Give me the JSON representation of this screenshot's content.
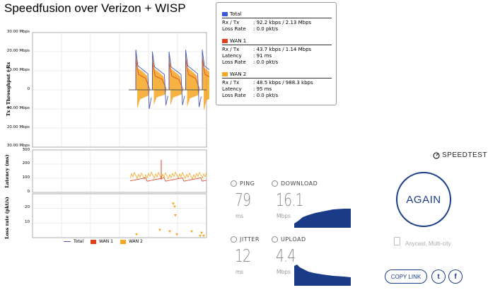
{
  "page": {
    "title": "Speedfusion over Verizon + WISP"
  },
  "chart": {
    "throughput_label": "Tx ) Throughput ( Rx",
    "throughput_ticks": [
      "30.00 Mbps",
      "20.00 Mbps",
      "10.00 Mbps",
      "0",
      "10.00 Mbps",
      "20.00 Mbps",
      "30.00 Mbps"
    ],
    "latency_label": "Latency (ms)",
    "latency_ticks": [
      "300",
      "200",
      "100",
      "0"
    ],
    "loss_label": "Loss rate (pkt/s)",
    "loss_ticks": [
      "20",
      "10"
    ],
    "legend": {
      "total": "Total",
      "wan1": "WAN 1",
      "wan2": "WAN 2"
    },
    "colors": {
      "total": "#4a5ab8",
      "wan1": "#e0401a",
      "wan2": "#f5a623"
    }
  },
  "chart_data": [
    {
      "type": "area",
      "ylabel": "Tx ) Throughput ( Rx",
      "ylim": [
        -30,
        30
      ],
      "series": [
        {
          "name": "Total",
          "peaks_rx_mbps": [
            21,
            20,
            20,
            21,
            21
          ],
          "peaks_tx_mbps": [
            -10,
            -8,
            -8,
            -9,
            -11
          ]
        },
        {
          "name": "WAN 1",
          "peaks_rx_mbps": [
            10,
            9,
            9,
            10,
            10
          ]
        },
        {
          "name": "WAN 2",
          "peaks_rx_mbps": [
            11,
            11,
            11,
            11,
            11
          ]
        }
      ]
    },
    {
      "type": "line",
      "ylabel": "Latency (ms)",
      "ylim": [
        0,
        300
      ],
      "series": [
        {
          "name": "WAN 1",
          "typical": 91
        },
        {
          "name": "WAN 2",
          "typical": 95,
          "max": 230
        }
      ]
    },
    {
      "type": "scatter",
      "ylabel": "Loss rate (pkt/s)",
      "ylim": [
        0,
        30
      ],
      "series": [
        {
          "name": "WAN 2",
          "values": [
            2,
            5,
            4,
            23,
            21,
            15,
            2,
            4,
            1,
            3,
            1
          ]
        }
      ]
    }
  ],
  "stats": {
    "total": {
      "title": "Total",
      "rx_tx_label": "Rx / Tx",
      "rx_tx": ": 92.2 kbps / 2.13 Mbps",
      "loss_label": "Loss Rate",
      "loss": ": 0.0 pkt/s"
    },
    "wan1": {
      "title": "WAN 1",
      "rx_tx_label": "Rx / Tx",
      "rx_tx": ": 43.7 kbps / 1.14 Mbps",
      "latency_label": "Latency",
      "latency": ": 91 ms",
      "loss_label": "Loss Rate",
      "loss": ": 0.0 pkt/s"
    },
    "wan2": {
      "title": "WAN 2",
      "rx_tx_label": "Rx / Tx",
      "rx_tx": ": 48.5 kbps / 988.3 kbps",
      "latency_label": "Latency",
      "latency": ": 95 ms",
      "loss_label": "Loss Rate",
      "loss": ": 0.0 pkt/s"
    }
  },
  "speedtest": {
    "brand": "SPEEDTEST",
    "ping": {
      "label": "PING",
      "value": "79",
      "unit": "ms"
    },
    "download": {
      "label": "DOWNLOAD",
      "value": "16.1",
      "unit": "Mbps"
    },
    "jitter": {
      "label": "JITTER",
      "value": "12",
      "unit": "ms"
    },
    "upload": {
      "label": "UPLOAD",
      "value": "4.4",
      "unit": "Mbps"
    },
    "again": "AGAIN",
    "server": "Anycast, Multi-city",
    "copy_link": "COPY LINK",
    "twitter": "t",
    "facebook": "f",
    "accent": "#1a3c88"
  }
}
